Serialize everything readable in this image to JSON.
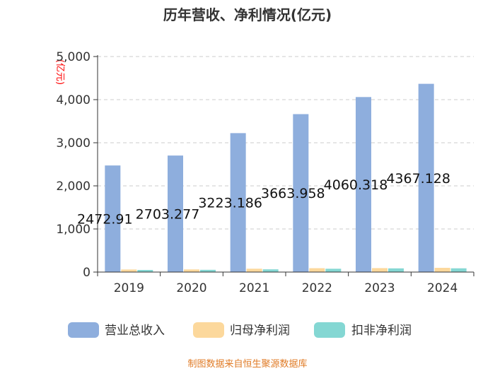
{
  "chart_data": {
    "type": "bar",
    "title": "历年营收、净利情况(亿元)",
    "ylabel": "(亿元)",
    "xlabel": "",
    "ylim": [
      0,
      5000
    ],
    "yticks": [
      0,
      1000,
      2000,
      3000,
      4000,
      5000
    ],
    "ytick_labels": [
      "0",
      "1,000",
      "2,000",
      "3,000",
      "4,000",
      "5,000"
    ],
    "categories": [
      "2019",
      "2020",
      "2021",
      "2022",
      "2023",
      "2024"
    ],
    "series": [
      {
        "name": "营业总收入",
        "color": "#8eaedd",
        "values": [
          2472.91,
          2703.277,
          3223.186,
          3663.958,
          4060.318,
          4367.128
        ],
        "labels": [
          "2472.91",
          "2703.277",
          "3223.186",
          "3663.958",
          "4060.318",
          "4367.128"
        ]
      },
      {
        "name": "归母净利润",
        "color": "#fcd89c",
        "values": [
          59.6,
          61.2,
          78.0,
          89.8,
          91.9,
          98.0
        ]
      },
      {
        "name": "扣非净利润",
        "color": "#84d7d3",
        "values": [
          49.3,
          52.1,
          63.4,
          76.9,
          85.9,
          87.1
        ]
      }
    ],
    "legend_position": "bottom",
    "source": "制图数据来自恒生聚源数据库"
  }
}
